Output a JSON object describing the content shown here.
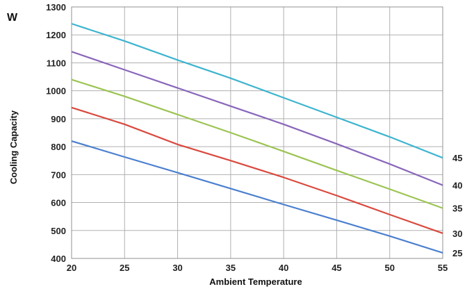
{
  "chart_data": {
    "type": "line",
    "unit_label": "W",
    "ylabel": "Cooling Capacity",
    "xlabel": "Ambient Temperature",
    "xlim": [
      20,
      55
    ],
    "ylim": [
      400,
      1300
    ],
    "grid": true,
    "x_ticks": [
      "20",
      "25",
      "30",
      "35",
      "40",
      "45",
      "50",
      "55"
    ],
    "y_ticks": [
      "400",
      "500",
      "600",
      "700",
      "800",
      "900",
      "1000",
      "1100",
      "1200",
      "1300"
    ],
    "series_labels_position": "right-end",
    "x": [
      20,
      25,
      30,
      35,
      40,
      45,
      50,
      55
    ],
    "series": [
      {
        "name": "25",
        "color": "#4a7fcf",
        "values": [
          820,
          763,
          707,
          650,
          593,
          537,
          480,
          420
        ]
      },
      {
        "name": "30",
        "color": "#d9493e",
        "values": [
          940,
          880,
          808,
          750,
          690,
          625,
          557,
          490
        ]
      },
      {
        "name": "35",
        "color": "#9bc452",
        "values": [
          1040,
          980,
          915,
          850,
          783,
          715,
          648,
          580
        ]
      },
      {
        "name": "40",
        "color": "#8866bb",
        "values": [
          1140,
          1075,
          1010,
          945,
          880,
          810,
          738,
          662
        ]
      },
      {
        "name": "45",
        "color": "#3db4cf",
        "values": [
          1240,
          1178,
          1110,
          1045,
          975,
          905,
          835,
          760
        ]
      }
    ]
  }
}
